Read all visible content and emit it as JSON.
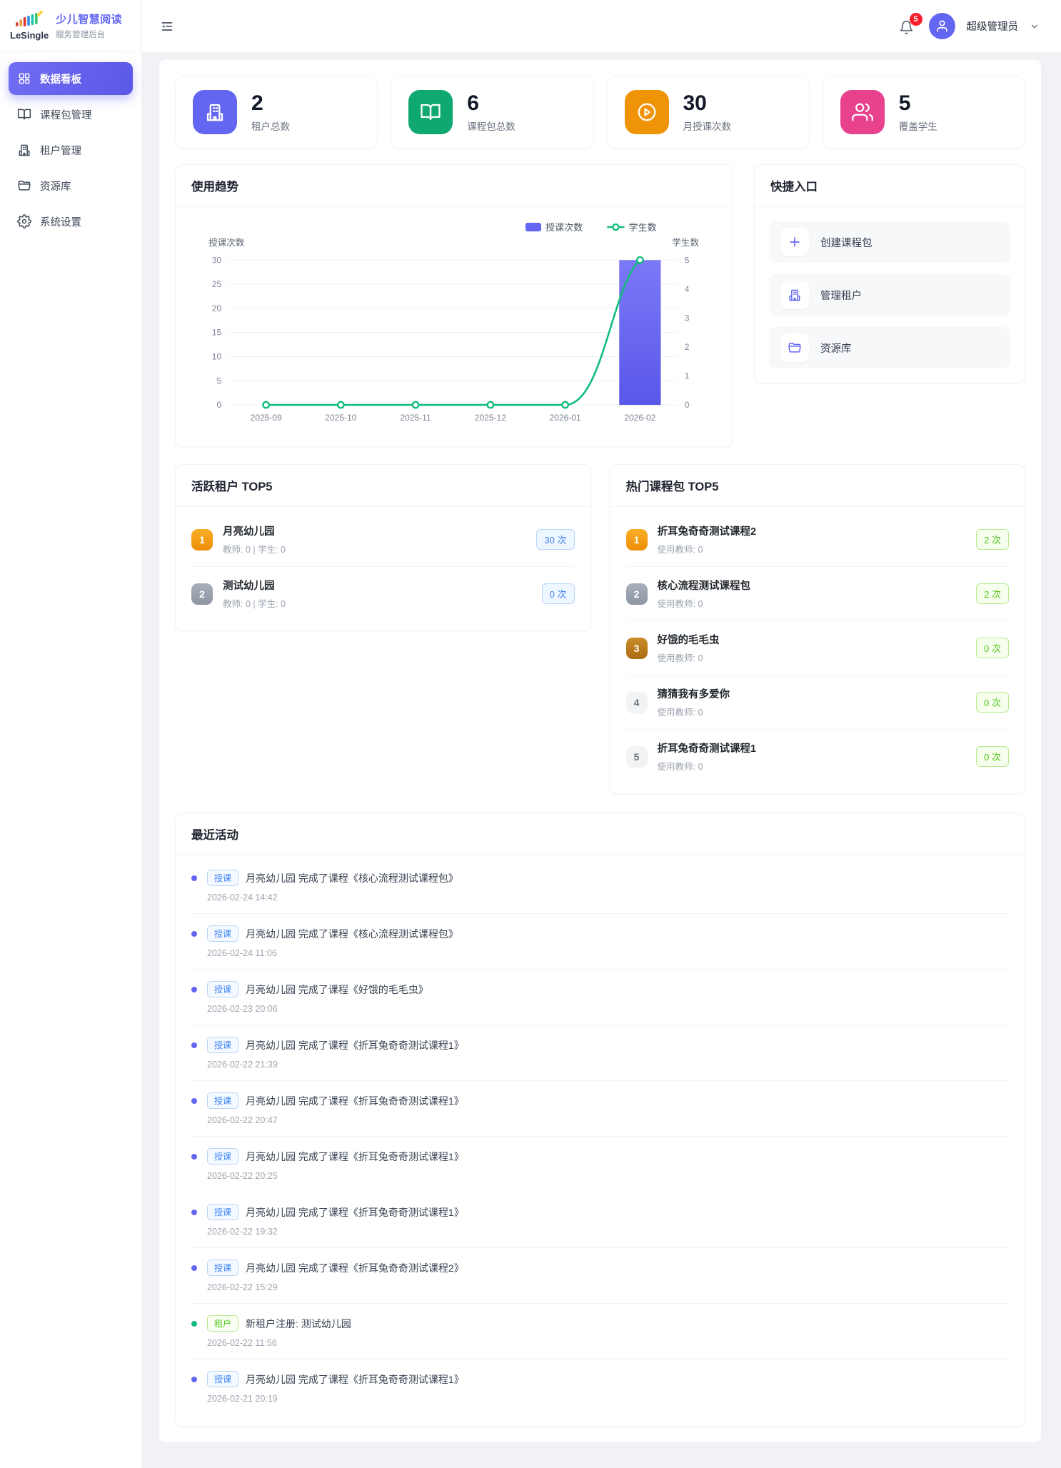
{
  "app": {
    "brand_name": "LeSingle",
    "title": "少儿智慧阅读",
    "subtitle": "服务管理后台"
  },
  "header": {
    "notification_count": "5",
    "user_name": "超级管理员"
  },
  "sidebar": {
    "items": [
      {
        "key": "dashboard",
        "label": "数据看板",
        "icon": "dashboard-icon",
        "active": true
      },
      {
        "key": "course-packages",
        "label": "课程包管理",
        "icon": "book-icon",
        "active": false
      },
      {
        "key": "tenants",
        "label": "租户管理",
        "icon": "building-icon",
        "active": false
      },
      {
        "key": "resources",
        "label": "资源库",
        "icon": "folder-icon",
        "active": false
      },
      {
        "key": "settings",
        "label": "系统设置",
        "icon": "gear-icon",
        "active": false
      }
    ]
  },
  "stats": [
    {
      "key": "tenants-total",
      "value": "2",
      "label": "租户总数",
      "icon": "building-icon",
      "color": "#6366f1"
    },
    {
      "key": "packages-total",
      "value": "6",
      "label": "课程包总数",
      "icon": "book-icon",
      "color": "#10a871"
    },
    {
      "key": "monthly-lessons",
      "value": "30",
      "label": "月授课次数",
      "icon": "play-icon",
      "color": "#ef9307"
    },
    {
      "key": "students-covered",
      "value": "5",
      "label": "覆盖学生",
      "icon": "users-icon",
      "color": "#e8418e"
    }
  ],
  "chart_data": {
    "type": "bar+line",
    "title": "使用趋势",
    "categories": [
      "2025-09",
      "2025-10",
      "2025-11",
      "2025-12",
      "2026-01",
      "2026-02"
    ],
    "series": [
      {
        "name": "授课次数",
        "type": "bar",
        "axis": "left",
        "color": "#6366f1",
        "values": [
          0,
          0,
          0,
          0,
          0,
          30
        ]
      },
      {
        "name": "学生数",
        "type": "line",
        "axis": "right",
        "color": "#11bd7c",
        "values": [
          0,
          0,
          0,
          0,
          0,
          5
        ]
      }
    ],
    "left_axis": {
      "name": "授课次数",
      "ticks": [
        0,
        5,
        10,
        15,
        20,
        25,
        30
      ],
      "max": 30
    },
    "right_axis": {
      "name": "学生数",
      "ticks": [
        0,
        1,
        2,
        3,
        4,
        5
      ],
      "max": 5
    },
    "legend_position": "top-right",
    "grid": true
  },
  "quick_entry": {
    "title": "快捷入口",
    "items": [
      {
        "key": "create-package",
        "label": "创建课程包",
        "icon": "plus-icon"
      },
      {
        "key": "manage-tenants",
        "label": "管理租户",
        "icon": "building-icon"
      },
      {
        "key": "resource-library",
        "label": "资源库",
        "icon": "folder-icon"
      }
    ]
  },
  "active_tenants": {
    "title": "活跃租户 TOP5",
    "items": [
      {
        "rank": "1",
        "name": "月亮幼儿园",
        "meta": "教师: 0 | 学生: 0",
        "count": "30 次"
      },
      {
        "rank": "2",
        "name": "测试幼儿园",
        "meta": "教师: 0 | 学生: 0",
        "count": "0 次"
      }
    ]
  },
  "hot_packages": {
    "title": "热门课程包 TOP5",
    "items": [
      {
        "rank": "1",
        "name": "折耳兔奇奇测试课程2",
        "meta": "使用教师: 0",
        "count": "2 次"
      },
      {
        "rank": "2",
        "name": "核心流程测试课程包",
        "meta": "使用教师: 0",
        "count": "2 次"
      },
      {
        "rank": "3",
        "name": "好饿的毛毛虫",
        "meta": "使用教师: 0",
        "count": "0 次"
      },
      {
        "rank": "4",
        "name": "猜猜我有多爱你",
        "meta": "使用教师: 0",
        "count": "0 次"
      },
      {
        "rank": "5",
        "name": "折耳兔奇奇测试课程1",
        "meta": "使用教师: 0",
        "count": "0 次"
      }
    ]
  },
  "recent_activity": {
    "title": "最近活动",
    "items": [
      {
        "kind": "lesson",
        "badge": "授课",
        "text": "月亮幼儿园 完成了课程《核心流程测试课程包》",
        "time": "2026-02-24 14:42"
      },
      {
        "kind": "lesson",
        "badge": "授课",
        "text": "月亮幼儿园 完成了课程《核心流程测试课程包》",
        "time": "2026-02-24 11:06"
      },
      {
        "kind": "lesson",
        "badge": "授课",
        "text": "月亮幼儿园 完成了课程《好饿的毛毛虫》",
        "time": "2026-02-23 20:06"
      },
      {
        "kind": "lesson",
        "badge": "授课",
        "text": "月亮幼儿园 完成了课程《折耳兔奇奇测试课程1》",
        "time": "2026-02-22 21:39"
      },
      {
        "kind": "lesson",
        "badge": "授课",
        "text": "月亮幼儿园 完成了课程《折耳兔奇奇测试课程1》",
        "time": "2026-02-22 20:47"
      },
      {
        "kind": "lesson",
        "badge": "授课",
        "text": "月亮幼儿园 完成了课程《折耳兔奇奇测试课程1》",
        "time": "2026-02-22 20:25"
      },
      {
        "kind": "lesson",
        "badge": "授课",
        "text": "月亮幼儿园 完成了课程《折耳兔奇奇测试课程1》",
        "time": "2026-02-22 19:32"
      },
      {
        "kind": "lesson",
        "badge": "授课",
        "text": "月亮幼儿园 完成了课程《折耳兔奇奇测试课程2》",
        "time": "2026-02-22 15:29"
      },
      {
        "kind": "tenant",
        "badge": "租户",
        "text": "新租户注册: 测试幼儿园",
        "time": "2026-02-22 11:56"
      },
      {
        "kind": "lesson",
        "badge": "授课",
        "text": "月亮幼儿园 完成了课程《折耳兔奇奇测试课程1》",
        "time": "2026-02-21 20:19"
      }
    ]
  },
  "colors": {
    "primary": "#6366f1",
    "bar": "#6366f1",
    "line": "#11bd7c",
    "badge_red": "#f5222d",
    "rank1": "#ef9307",
    "rank3": "#b5791f"
  }
}
